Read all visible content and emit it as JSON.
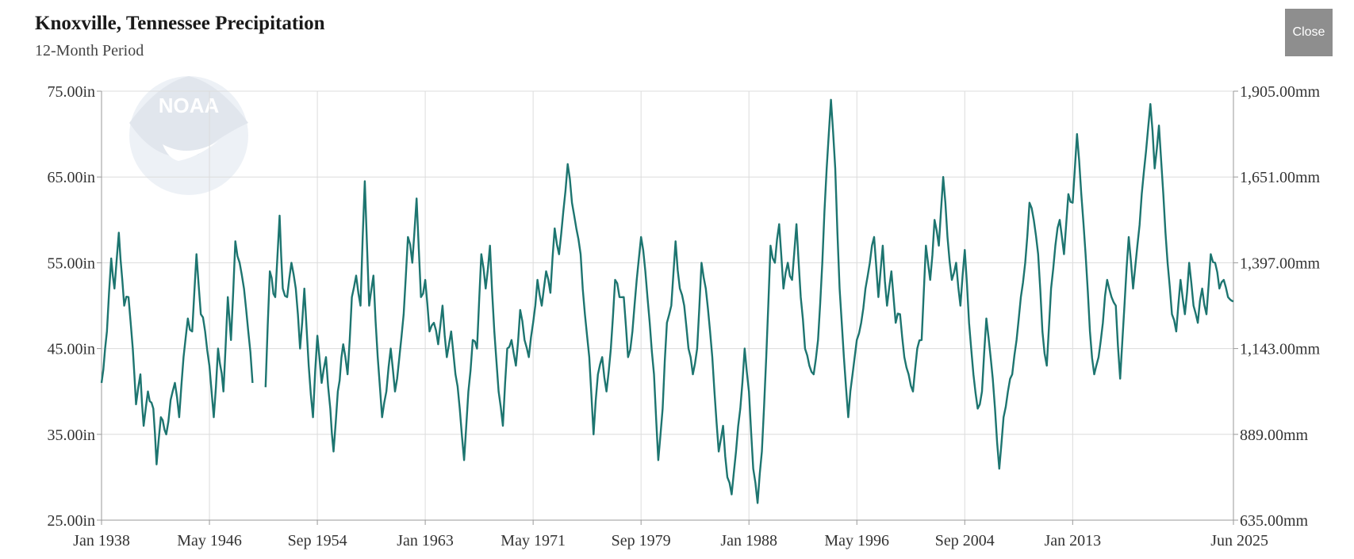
{
  "header": {
    "title": "Knoxville, Tennessee Precipitation",
    "subtitle": "12-Month Period",
    "close_label": "Close"
  },
  "colors": {
    "series": "#1d7570",
    "grid": "#dcdcdc",
    "axis": "#999999",
    "logo": "#dfe6f0"
  },
  "icons": {
    "logo": "noaa-logo-icon"
  },
  "chart_data": {
    "type": "line",
    "title": "Knoxville, Tennessee Precipitation",
    "subtitle": "12-Month Period",
    "xlabel": "",
    "ylabel": "",
    "xlim": [
      "1938-01",
      "2025-06"
    ],
    "ylim": [
      25,
      75
    ],
    "grid": true,
    "legend": "none",
    "x_ticks": [
      "Jan 1938",
      "May 1946",
      "Sep 1954",
      "Jan 1963",
      "May 1971",
      "Sep 1979",
      "Jan 1988",
      "May 1996",
      "Sep 2004",
      "Jan 2013",
      "Jun 2025"
    ],
    "y_ticks_left": [
      "25.00in",
      "35.00in",
      "45.00in",
      "55.00in",
      "65.00in",
      "75.00in"
    ],
    "y_ticks_right": [
      "635.00mm",
      "889.00mm",
      "1,143.00mm",
      "1,397.00mm",
      "1,651.00mm",
      "1,905.00mm"
    ],
    "series": [
      {
        "values_unit": "in",
        "points": [
          [
            "1938-01",
            41
          ],
          [
            "1938-06",
            47
          ],
          [
            "1938-10",
            55.5
          ],
          [
            "1939-01",
            52
          ],
          [
            "1939-05",
            58.5
          ],
          [
            "1939-10",
            50
          ],
          [
            "1940-02",
            51
          ],
          [
            "1940-06",
            45
          ],
          [
            "1940-09",
            38.5
          ],
          [
            "1941-01",
            42
          ],
          [
            "1941-04",
            36
          ],
          [
            "1941-08",
            40
          ],
          [
            "1942-01",
            38
          ],
          [
            "1942-04",
            31.5
          ],
          [
            "1942-08",
            37
          ],
          [
            "1943-01",
            35
          ],
          [
            "1943-05",
            39
          ],
          [
            "1943-09",
            41
          ],
          [
            "1944-01",
            37
          ],
          [
            "1944-05",
            44
          ],
          [
            "1944-09",
            48.5
          ],
          [
            "1945-01",
            47
          ],
          [
            "1945-05",
            56
          ],
          [
            "1945-09",
            49
          ],
          [
            "1946-01",
            47
          ],
          [
            "1946-05",
            43
          ],
          [
            "1946-09",
            37
          ],
          [
            "1947-01",
            45
          ],
          [
            "1947-06",
            40
          ],
          [
            "1947-10",
            51
          ],
          [
            "1948-01",
            46
          ],
          [
            "1948-05",
            57.5
          ],
          [
            "1948-09",
            55
          ],
          [
            "1949-01",
            52
          ],
          [
            "1949-05",
            47
          ],
          [
            "1949-09",
            41
          ],
          null,
          [
            "1950-09",
            40.5
          ],
          [
            "1951-01",
            54
          ],
          [
            "1951-06",
            51
          ],
          [
            "1951-10",
            60.5
          ],
          [
            "1952-01",
            52
          ],
          [
            "1952-05",
            51
          ],
          [
            "1952-09",
            55
          ],
          [
            "1953-01",
            52
          ],
          [
            "1953-05",
            45
          ],
          [
            "1953-09",
            52
          ],
          [
            "1954-01",
            43
          ],
          [
            "1954-05",
            37
          ],
          [
            "1954-09",
            46.5
          ],
          [
            "1955-01",
            41
          ],
          [
            "1955-05",
            44
          ],
          [
            "1955-09",
            38
          ],
          [
            "1955-12",
            33
          ],
          [
            "1956-04",
            40
          ],
          [
            "1956-09",
            45.5
          ],
          [
            "1957-01",
            42
          ],
          [
            "1957-05",
            51
          ],
          [
            "1957-09",
            53.5
          ],
          [
            "1958-01",
            50
          ],
          [
            "1958-05",
            64.5
          ],
          [
            "1958-09",
            50
          ],
          [
            "1959-01",
            53.5
          ],
          [
            "1959-05",
            44
          ],
          [
            "1959-09",
            37
          ],
          [
            "1960-01",
            40
          ],
          [
            "1960-05",
            45
          ],
          [
            "1960-09",
            40
          ],
          [
            "1961-01",
            44
          ],
          [
            "1961-05",
            49
          ],
          [
            "1961-09",
            58
          ],
          [
            "1962-01",
            55
          ],
          [
            "1962-05",
            62.5
          ],
          [
            "1962-09",
            51
          ],
          [
            "1963-01",
            53
          ],
          [
            "1963-05",
            47
          ],
          [
            "1963-09",
            48
          ],
          [
            "1964-01",
            45.5
          ],
          [
            "1964-05",
            50
          ],
          [
            "1964-09",
            44
          ],
          [
            "1965-01",
            47
          ],
          [
            "1965-05",
            42
          ],
          [
            "1965-09",
            38
          ],
          [
            "1966-01",
            32
          ],
          [
            "1966-05",
            40
          ],
          [
            "1966-09",
            46
          ],
          [
            "1967-01",
            45
          ],
          [
            "1967-05",
            56
          ],
          [
            "1967-09",
            52
          ],
          [
            "1968-01",
            57
          ],
          [
            "1968-05",
            47
          ],
          [
            "1968-09",
            40
          ],
          [
            "1969-01",
            36
          ],
          [
            "1969-05",
            45
          ],
          [
            "1969-09",
            46
          ],
          [
            "1970-01",
            43
          ],
          [
            "1970-05",
            49.5
          ],
          [
            "1970-09",
            46
          ],
          [
            "1971-01",
            44
          ],
          [
            "1971-05",
            48
          ],
          [
            "1971-09",
            53
          ],
          [
            "1972-01",
            50
          ],
          [
            "1972-05",
            54
          ],
          [
            "1972-09",
            51.5
          ],
          [
            "1973-01",
            59
          ],
          [
            "1973-05",
            56
          ],
          [
            "1973-09",
            61
          ],
          [
            "1974-01",
            66.5
          ],
          [
            "1974-05",
            62
          ],
          [
            "1974-09",
            59
          ],
          [
            "1975-01",
            56
          ],
          [
            "1975-05",
            49
          ],
          [
            "1975-09",
            44
          ],
          [
            "1976-01",
            35
          ],
          [
            "1976-05",
            42
          ],
          [
            "1976-09",
            44
          ],
          [
            "1977-01",
            40
          ],
          [
            "1977-05",
            45
          ],
          [
            "1977-09",
            53
          ],
          [
            "1978-01",
            51
          ],
          [
            "1978-05",
            51
          ],
          [
            "1978-09",
            44
          ],
          [
            "1979-01",
            47
          ],
          [
            "1979-05",
            53
          ],
          [
            "1979-09",
            58
          ],
          [
            "1980-01",
            54
          ],
          [
            "1980-05",
            48
          ],
          [
            "1980-09",
            42
          ],
          [
            "1981-01",
            32
          ],
          [
            "1981-05",
            38
          ],
          [
            "1981-09",
            48
          ],
          [
            "1982-01",
            50
          ],
          [
            "1982-05",
            57.5
          ],
          [
            "1982-09",
            52
          ],
          [
            "1983-01",
            50
          ],
          [
            "1983-05",
            45
          ],
          [
            "1983-09",
            42
          ],
          [
            "1984-01",
            45
          ],
          [
            "1984-05",
            55
          ],
          [
            "1984-09",
            52
          ],
          [
            "1985-01",
            47
          ],
          [
            "1985-05",
            40
          ],
          [
            "1985-09",
            33
          ],
          [
            "1986-01",
            36
          ],
          [
            "1986-05",
            30
          ],
          [
            "1986-09",
            28
          ],
          [
            "1987-01",
            33
          ],
          [
            "1987-05",
            38
          ],
          [
            "1987-09",
            45
          ],
          [
            "1988-01",
            40
          ],
          [
            "1988-05",
            31
          ],
          [
            "1988-09",
            27
          ],
          [
            "1989-01",
            33
          ],
          [
            "1989-05",
            44
          ],
          [
            "1989-09",
            57
          ],
          [
            "1990-01",
            55
          ],
          [
            "1990-05",
            59.5
          ],
          [
            "1990-09",
            52
          ],
          [
            "1991-01",
            55
          ],
          [
            "1991-05",
            53
          ],
          [
            "1991-09",
            59.5
          ],
          [
            "1992-01",
            51
          ],
          [
            "1992-05",
            45
          ],
          [
            "1992-09",
            43
          ],
          [
            "1993-01",
            42
          ],
          [
            "1993-05",
            46
          ],
          [
            "1993-09",
            55
          ],
          [
            "1994-01",
            66
          ],
          [
            "1994-05",
            74
          ],
          [
            "1994-09",
            66
          ],
          [
            "1995-01",
            52
          ],
          [
            "1995-05",
            44
          ],
          [
            "1995-09",
            37
          ],
          [
            "1996-01",
            42
          ],
          [
            "1996-05",
            46
          ],
          [
            "1996-09",
            48
          ],
          [
            "1997-01",
            52
          ],
          [
            "1997-05",
            55
          ],
          [
            "1997-09",
            58
          ],
          [
            "1998-01",
            51
          ],
          [
            "1998-05",
            57
          ],
          [
            "1998-09",
            50
          ],
          [
            "1999-01",
            54
          ],
          [
            "1999-05",
            48
          ],
          [
            "1999-09",
            49
          ],
          [
            "2000-01",
            44
          ],
          [
            "2000-05",
            42
          ],
          [
            "2000-09",
            40
          ],
          [
            "2001-01",
            45
          ],
          [
            "2001-05",
            46
          ],
          [
            "2001-09",
            57
          ],
          [
            "2002-01",
            53
          ],
          [
            "2002-05",
            60
          ],
          [
            "2002-09",
            57
          ],
          [
            "2003-01",
            65
          ],
          [
            "2003-05",
            58
          ],
          [
            "2003-09",
            53
          ],
          [
            "2004-01",
            55
          ],
          [
            "2004-05",
            50
          ],
          [
            "2004-09",
            56.5
          ],
          [
            "2005-01",
            48
          ],
          [
            "2005-05",
            42
          ],
          [
            "2005-09",
            38
          ],
          [
            "2006-01",
            40
          ],
          [
            "2006-05",
            48.5
          ],
          [
            "2006-09",
            44
          ],
          [
            "2007-01",
            38
          ],
          [
            "2007-05",
            31
          ],
          [
            "2007-09",
            37
          ],
          [
            "2008-01",
            40
          ],
          [
            "2008-05",
            42
          ],
          [
            "2008-09",
            46
          ],
          [
            "2009-01",
            51
          ],
          [
            "2009-05",
            55
          ],
          [
            "2009-09",
            62
          ],
          [
            "2010-01",
            60
          ],
          [
            "2010-05",
            56
          ],
          [
            "2010-09",
            47
          ],
          [
            "2011-01",
            43
          ],
          [
            "2011-05",
            52
          ],
          [
            "2011-09",
            57
          ],
          [
            "2012-01",
            60
          ],
          [
            "2012-05",
            56
          ],
          [
            "2012-09",
            63
          ],
          [
            "2013-01",
            62
          ],
          [
            "2013-05",
            70
          ],
          [
            "2013-09",
            63
          ],
          [
            "2014-01",
            56
          ],
          [
            "2014-05",
            47
          ],
          [
            "2014-09",
            42
          ],
          [
            "2015-01",
            44
          ],
          [
            "2015-05",
            48
          ],
          [
            "2015-09",
            53
          ],
          [
            "2016-01",
            51
          ],
          [
            "2016-05",
            50
          ],
          [
            "2016-09",
            41.5
          ],
          [
            "2017-01",
            50
          ],
          [
            "2017-05",
            58
          ],
          [
            "2017-09",
            52
          ],
          [
            "2018-01",
            57
          ],
          [
            "2018-05",
            63
          ],
          [
            "2018-09",
            68
          ],
          [
            "2019-01",
            73.5
          ],
          [
            "2019-05",
            66
          ],
          [
            "2019-09",
            71
          ],
          [
            "2020-01",
            63
          ],
          [
            "2020-05",
            55
          ],
          [
            "2020-09",
            49
          ],
          [
            "2021-01",
            47
          ],
          [
            "2021-05",
            53
          ],
          [
            "2021-09",
            49
          ],
          [
            "2022-01",
            55
          ],
          [
            "2022-05",
            50
          ],
          [
            "2022-09",
            48
          ],
          [
            "2023-01",
            52
          ],
          [
            "2023-05",
            49
          ],
          [
            "2023-09",
            56
          ],
          [
            "2024-01",
            55
          ],
          [
            "2024-05",
            52
          ],
          [
            "2024-09",
            53
          ],
          [
            "2025-01",
            51
          ],
          [
            "2025-06",
            50.5
          ]
        ]
      }
    ]
  }
}
